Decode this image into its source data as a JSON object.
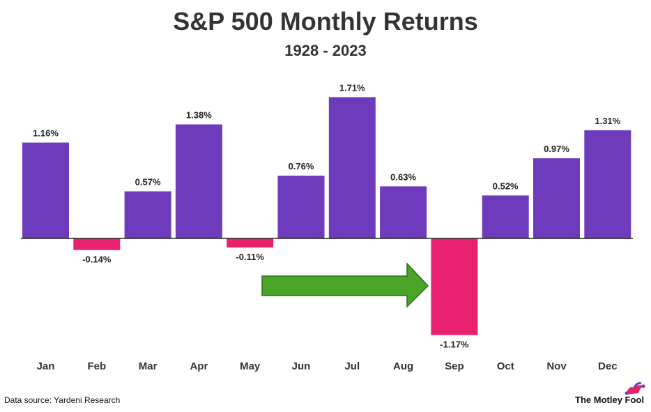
{
  "header": {
    "title": "S&P 500 Monthly Returns",
    "subtitle": "1928 - 2023"
  },
  "chart_data": {
    "type": "bar",
    "title": "S&P 500 Monthly Returns",
    "subtitle": "1928 - 2023",
    "categories": [
      "Jan",
      "Feb",
      "Mar",
      "Apr",
      "May",
      "Jun",
      "Jul",
      "Aug",
      "Sep",
      "Oct",
      "Nov",
      "Dec"
    ],
    "values": [
      1.16,
      -0.14,
      0.57,
      1.38,
      -0.11,
      0.76,
      1.71,
      0.63,
      -1.17,
      0.52,
      0.97,
      1.31
    ],
    "labels": [
      "1.16%",
      "-0.14%",
      "0.57%",
      "1.38%",
      "-0.11%",
      "0.76%",
      "1.71%",
      "0.63%",
      "-1.17%",
      "0.52%",
      "0.97%",
      "1.31%"
    ],
    "colors": {
      "positive": "#6f3bbd",
      "negative": "#e8216f",
      "arrow": "#4aa528",
      "axis": "#222222"
    },
    "annotations": [
      {
        "type": "arrow",
        "points_to": "Sep"
      }
    ],
    "xlabel": "",
    "ylabel": "",
    "ylim": [
      -1.17,
      1.71
    ],
    "grid": false
  },
  "footer": {
    "source": "Data source: Yardeni Research",
    "brand": "The Motley Fool",
    "brand_icon": "jester-cap-icon"
  }
}
